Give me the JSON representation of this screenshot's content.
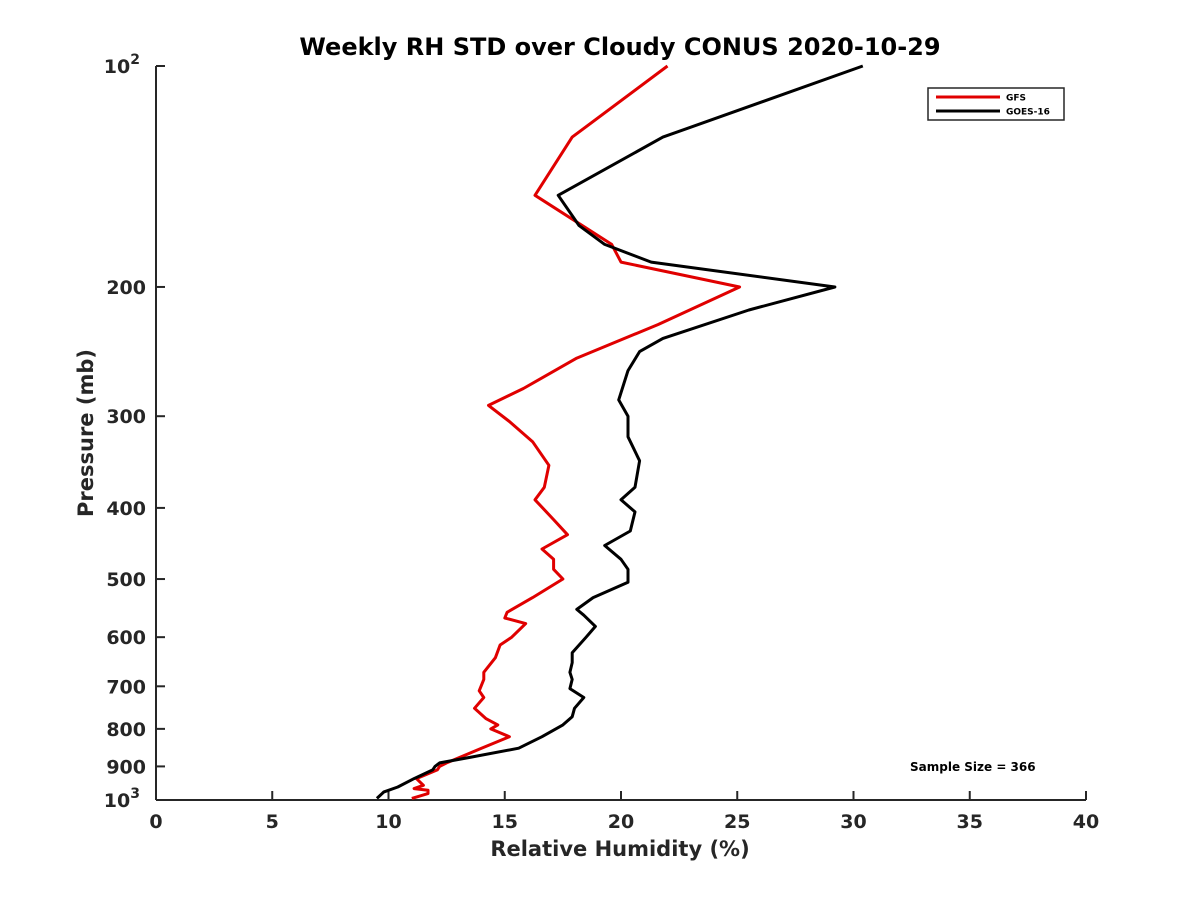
{
  "chart_data": {
    "type": "line",
    "title": "Weekly RH STD over Cloudy CONUS 2020-10-29",
    "xlabel": "Relative Humidity (%)",
    "ylabel": "Pressure (mb)",
    "xlim": [
      0,
      40
    ],
    "ylim": [
      100,
      1000
    ],
    "y_scale": "log",
    "y_reversed": true,
    "xticks": [
      0,
      5,
      10,
      15,
      20,
      25,
      30,
      35,
      40
    ],
    "yticks": [
      {
        "value": 100,
        "base": "10",
        "exp": "2"
      },
      {
        "value": 200,
        "label": "200"
      },
      {
        "value": 300,
        "label": "300"
      },
      {
        "value": 400,
        "label": "400"
      },
      {
        "value": 500,
        "label": "500"
      },
      {
        "value": 600,
        "label": "600"
      },
      {
        "value": 700,
        "label": "700"
      },
      {
        "value": 800,
        "label": "800"
      },
      {
        "value": 900,
        "label": "900"
      },
      {
        "value": 1000,
        "base": "10",
        "exp": "3"
      }
    ],
    "grid": false,
    "legend_position": "top-right",
    "annotation": "Sample Size = 366",
    "series": [
      {
        "name": "GFS",
        "color": "#e00000",
        "points": [
          [
            22.0,
            100
          ],
          [
            17.9,
            125
          ],
          [
            16.3,
            150
          ],
          [
            19.6,
            175
          ],
          [
            20.0,
            185
          ],
          [
            25.1,
            200
          ],
          [
            21.6,
            225
          ],
          [
            18.1,
            250
          ],
          [
            15.8,
            275
          ],
          [
            14.3,
            290
          ],
          [
            15.2,
            305
          ],
          [
            16.2,
            325
          ],
          [
            16.9,
            350
          ],
          [
            16.7,
            375
          ],
          [
            16.3,
            390
          ],
          [
            17.1,
            415
          ],
          [
            17.7,
            435
          ],
          [
            16.6,
            455
          ],
          [
            17.1,
            470
          ],
          [
            17.1,
            485
          ],
          [
            17.5,
            500
          ],
          [
            16.2,
            530
          ],
          [
            15.1,
            555
          ],
          [
            15.0,
            565
          ],
          [
            15.9,
            575
          ],
          [
            15.3,
            600
          ],
          [
            14.8,
            615
          ],
          [
            14.6,
            640
          ],
          [
            14.1,
            670
          ],
          [
            14.1,
            685
          ],
          [
            13.9,
            710
          ],
          [
            14.1,
            725
          ],
          [
            13.7,
            750
          ],
          [
            14.2,
            775
          ],
          [
            14.7,
            790
          ],
          [
            14.4,
            800
          ],
          [
            15.2,
            820
          ],
          [
            14.0,
            850
          ],
          [
            12.5,
            890
          ],
          [
            12.2,
            900
          ],
          [
            12.1,
            910
          ],
          [
            11.2,
            935
          ],
          [
            11.5,
            955
          ],
          [
            11.1,
            965
          ],
          [
            11.7,
            970
          ],
          [
            11.7,
            980
          ],
          [
            11.0,
            995
          ]
        ]
      },
      {
        "name": "GOES-16",
        "color": "#000000",
        "points": [
          [
            30.4,
            100
          ],
          [
            21.8,
            125
          ],
          [
            17.3,
            150
          ],
          [
            18.2,
            165
          ],
          [
            19.3,
            175
          ],
          [
            21.3,
            185
          ],
          [
            29.2,
            200
          ],
          [
            25.5,
            215
          ],
          [
            21.8,
            235
          ],
          [
            20.8,
            245
          ],
          [
            20.3,
            260
          ],
          [
            19.9,
            285
          ],
          [
            20.3,
            300
          ],
          [
            20.3,
            320
          ],
          [
            20.8,
            345
          ],
          [
            20.6,
            375
          ],
          [
            20.0,
            390
          ],
          [
            20.6,
            405
          ],
          [
            20.4,
            430
          ],
          [
            19.3,
            450
          ],
          [
            20.0,
            470
          ],
          [
            20.3,
            485
          ],
          [
            20.3,
            505
          ],
          [
            18.8,
            530
          ],
          [
            18.1,
            550
          ],
          [
            18.4,
            560
          ],
          [
            18.9,
            580
          ],
          [
            18.5,
            600
          ],
          [
            17.9,
            630
          ],
          [
            17.9,
            650
          ],
          [
            17.8,
            670
          ],
          [
            17.9,
            685
          ],
          [
            17.8,
            705
          ],
          [
            18.4,
            725
          ],
          [
            18.0,
            750
          ],
          [
            17.9,
            770
          ],
          [
            17.5,
            790
          ],
          [
            16.6,
            820
          ],
          [
            15.6,
            850
          ],
          [
            13.5,
            875
          ],
          [
            12.2,
            890
          ],
          [
            12.0,
            900
          ],
          [
            11.9,
            910
          ],
          [
            11.1,
            935
          ],
          [
            10.4,
            960
          ],
          [
            9.8,
            975
          ],
          [
            9.5,
            995
          ]
        ]
      }
    ]
  }
}
